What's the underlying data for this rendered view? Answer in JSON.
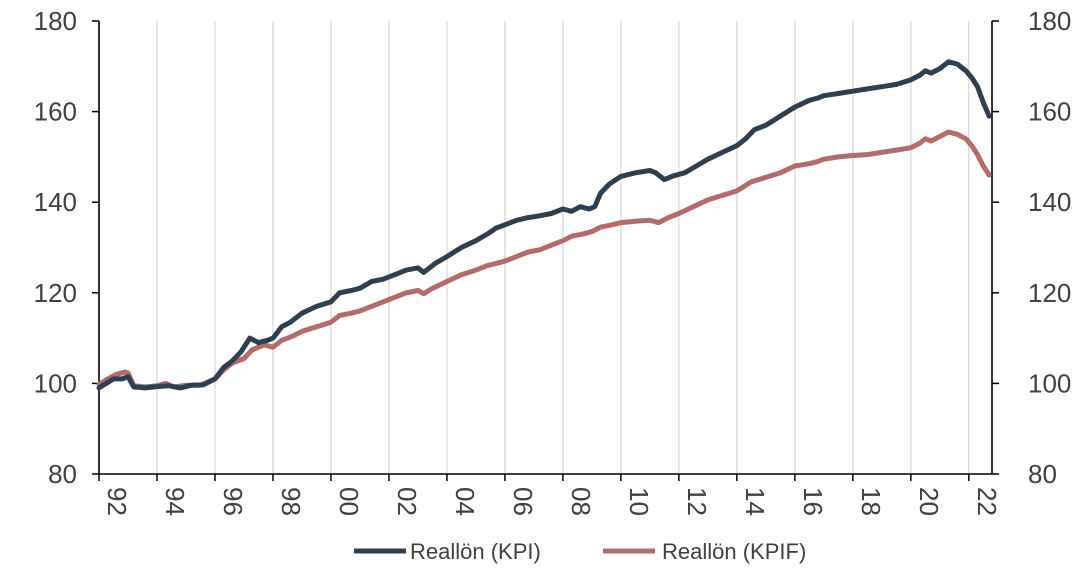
{
  "chart_data": {
    "type": "line",
    "title": "",
    "xlabel": "",
    "ylabel": "",
    "ylim": [
      80,
      180
    ],
    "y_ticks": [
      "80",
      "100",
      "120",
      "140",
      "160",
      "180"
    ],
    "y_axis_secondary": true,
    "xlim": [
      1992,
      2022.8
    ],
    "x_tick_labels": [
      "92",
      "94",
      "96",
      "98",
      "00",
      "02",
      "04",
      "06",
      "08",
      "10",
      "12",
      "14",
      "16",
      "18",
      "20",
      "22"
    ],
    "grid": "vertical",
    "legend_position": "bottom",
    "series": [
      {
        "name": "Reallön (KPI)",
        "color": "#2e4050",
        "points": [
          [
            1992.0,
            99
          ],
          [
            1992.5,
            101
          ],
          [
            1992.8,
            101
          ],
          [
            1993.0,
            101.5
          ],
          [
            1993.2,
            99.2
          ],
          [
            1993.6,
            99
          ],
          [
            1994.0,
            99.3
          ],
          [
            1994.4,
            99.5
          ],
          [
            1994.8,
            99
          ],
          [
            1995.2,
            99.6
          ],
          [
            1995.6,
            99.7
          ],
          [
            1996.0,
            101
          ],
          [
            1996.3,
            103.5
          ],
          [
            1996.6,
            105
          ],
          [
            1996.9,
            107
          ],
          [
            1997.2,
            110
          ],
          [
            1997.5,
            109
          ],
          [
            1997.8,
            109.5
          ],
          [
            1998.0,
            110
          ],
          [
            1998.3,
            112.5
          ],
          [
            1998.6,
            113.5
          ],
          [
            1999.0,
            115.5
          ],
          [
            1999.5,
            117
          ],
          [
            2000.0,
            118
          ],
          [
            2000.3,
            120
          ],
          [
            2000.7,
            120.5
          ],
          [
            2001.0,
            121
          ],
          [
            2001.4,
            122.5
          ],
          [
            2001.8,
            123
          ],
          [
            2002.2,
            124
          ],
          [
            2002.6,
            125
          ],
          [
            2003.0,
            125.5
          ],
          [
            2003.2,
            124.5
          ],
          [
            2003.6,
            126.5
          ],
          [
            2004.0,
            128
          ],
          [
            2004.5,
            130
          ],
          [
            2005.0,
            131.5
          ],
          [
            2005.4,
            133
          ],
          [
            2005.7,
            134.3
          ],
          [
            2006.0,
            135
          ],
          [
            2006.4,
            136
          ],
          [
            2006.8,
            136.6
          ],
          [
            2007.2,
            137
          ],
          [
            2007.6,
            137.5
          ],
          [
            2008.0,
            138.5
          ],
          [
            2008.3,
            138
          ],
          [
            2008.6,
            139
          ],
          [
            2008.9,
            138.5
          ],
          [
            2009.1,
            139
          ],
          [
            2009.3,
            142
          ],
          [
            2009.6,
            144
          ],
          [
            2010.0,
            145.7
          ],
          [
            2010.5,
            146.5
          ],
          [
            2011.0,
            147
          ],
          [
            2011.2,
            146.5
          ],
          [
            2011.5,
            145
          ],
          [
            2011.8,
            145.8
          ],
          [
            2012.2,
            146.5
          ],
          [
            2012.6,
            148
          ],
          [
            2013.0,
            149.5
          ],
          [
            2013.5,
            151
          ],
          [
            2014.0,
            152.5
          ],
          [
            2014.3,
            154
          ],
          [
            2014.6,
            156
          ],
          [
            2015.0,
            157
          ],
          [
            2015.5,
            159
          ],
          [
            2016.0,
            161
          ],
          [
            2016.5,
            162.5
          ],
          [
            2016.8,
            163
          ],
          [
            2017.0,
            163.5
          ],
          [
            2017.5,
            164
          ],
          [
            2018.0,
            164.5
          ],
          [
            2018.5,
            165
          ],
          [
            2019.0,
            165.5
          ],
          [
            2019.5,
            166
          ],
          [
            2020.0,
            167
          ],
          [
            2020.3,
            168
          ],
          [
            2020.5,
            169
          ],
          [
            2020.7,
            168.5
          ],
          [
            2021.0,
            169.5
          ],
          [
            2021.3,
            171
          ],
          [
            2021.6,
            170.5
          ],
          [
            2021.9,
            169
          ],
          [
            2022.1,
            167.5
          ],
          [
            2022.3,
            165.5
          ],
          [
            2022.5,
            162
          ],
          [
            2022.7,
            159
          ]
        ]
      },
      {
        "name": "Reallön (KPIF)",
        "color": "#b56b6b",
        "points": [
          [
            1992.0,
            99.8
          ],
          [
            1992.3,
            101
          ],
          [
            1992.6,
            102
          ],
          [
            1992.9,
            102.5
          ],
          [
            1993.0,
            102.3
          ],
          [
            1993.2,
            99.5
          ],
          [
            1993.6,
            99.2
          ],
          [
            1994.0,
            99.5
          ],
          [
            1994.3,
            100
          ],
          [
            1994.6,
            99.2
          ],
          [
            1995.0,
            99.6
          ],
          [
            1995.5,
            99.6
          ],
          [
            1996.0,
            101
          ],
          [
            1996.3,
            103
          ],
          [
            1996.6,
            104.5
          ],
          [
            1997.0,
            105.5
          ],
          [
            1997.3,
            107.5
          ],
          [
            1997.7,
            108.5
          ],
          [
            1998.0,
            108
          ],
          [
            1998.3,
            109.5
          ],
          [
            1998.7,
            110.5
          ],
          [
            1999.0,
            111.5
          ],
          [
            1999.5,
            112.5
          ],
          [
            2000.0,
            113.5
          ],
          [
            2000.3,
            115
          ],
          [
            2000.7,
            115.5
          ],
          [
            2001.0,
            116
          ],
          [
            2001.4,
            117
          ],
          [
            2001.8,
            118
          ],
          [
            2002.2,
            119
          ],
          [
            2002.6,
            120
          ],
          [
            2003.0,
            120.5
          ],
          [
            2003.2,
            119.8
          ],
          [
            2003.5,
            121
          ],
          [
            2004.0,
            122.5
          ],
          [
            2004.5,
            124
          ],
          [
            2005.0,
            125
          ],
          [
            2005.4,
            126
          ],
          [
            2005.7,
            126.5
          ],
          [
            2006.0,
            127
          ],
          [
            2006.4,
            128
          ],
          [
            2006.8,
            129
          ],
          [
            2007.2,
            129.5
          ],
          [
            2007.6,
            130.5
          ],
          [
            2008.0,
            131.5
          ],
          [
            2008.3,
            132.5
          ],
          [
            2008.7,
            133
          ],
          [
            2009.0,
            133.5
          ],
          [
            2009.3,
            134.5
          ],
          [
            2009.7,
            135
          ],
          [
            2010.0,
            135.5
          ],
          [
            2010.5,
            135.8
          ],
          [
            2011.0,
            136
          ],
          [
            2011.3,
            135.5
          ],
          [
            2011.6,
            136.5
          ],
          [
            2012.0,
            137.5
          ],
          [
            2012.5,
            139
          ],
          [
            2013.0,
            140.5
          ],
          [
            2013.5,
            141.5
          ],
          [
            2014.0,
            142.5
          ],
          [
            2014.5,
            144.5
          ],
          [
            2015.0,
            145.5
          ],
          [
            2015.5,
            146.5
          ],
          [
            2016.0,
            148
          ],
          [
            2016.5,
            148.5
          ],
          [
            2016.8,
            149
          ],
          [
            2017.0,
            149.5
          ],
          [
            2017.5,
            150
          ],
          [
            2018.0,
            150.3
          ],
          [
            2018.5,
            150.5
          ],
          [
            2019.0,
            151
          ],
          [
            2019.5,
            151.5
          ],
          [
            2020.0,
            152
          ],
          [
            2020.3,
            153
          ],
          [
            2020.5,
            154
          ],
          [
            2020.7,
            153.5
          ],
          [
            2021.0,
            154.5
          ],
          [
            2021.3,
            155.5
          ],
          [
            2021.6,
            155
          ],
          [
            2021.9,
            154
          ],
          [
            2022.1,
            152.5
          ],
          [
            2022.3,
            150.5
          ],
          [
            2022.5,
            148
          ],
          [
            2022.7,
            146
          ]
        ]
      }
    ]
  }
}
